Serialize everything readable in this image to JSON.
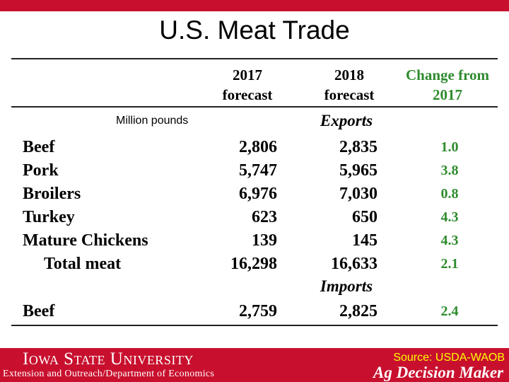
{
  "title": "U.S. Meat Trade",
  "table": {
    "headers": {
      "forecast_2017": [
        "2017",
        "forecast"
      ],
      "forecast_2018": [
        "2018",
        "forecast"
      ],
      "change": [
        "Change from",
        "2017"
      ]
    },
    "units": "Million pounds",
    "exports_label": "Exports",
    "imports_label": "Imports",
    "export_rows": [
      {
        "label": "Beef",
        "v2017": "2,806",
        "v2018": "2,835",
        "change": "1.0"
      },
      {
        "label": "Pork",
        "v2017": "5,747",
        "v2018": "5,965",
        "change": "3.8"
      },
      {
        "label": "Broilers",
        "v2017": "6,976",
        "v2018": "7,030",
        "change": "0.8"
      },
      {
        "label": "Turkey",
        "v2017": "623",
        "v2018": "650",
        "change": "4.3"
      },
      {
        "label": "Mature Chickens",
        "v2017": "139",
        "v2018": "145",
        "change": "4.3"
      },
      {
        "label": "Total meat",
        "v2017": "16,298",
        "v2018": "16,633",
        "change": "2.1"
      }
    ],
    "import_rows": [
      {
        "label": "Beef",
        "v2017": "2,759",
        "v2018": "2,825",
        "change": "2.4"
      }
    ]
  },
  "footer": {
    "university": "Iowa State University",
    "department": "Extension and Outreach/Department of Economics",
    "source": "Source: USDA-WAOB",
    "brand": "Ag Decision Maker"
  },
  "colors": {
    "brand_red": "#c8102e",
    "change_green": "#2e8b2e",
    "source_yellow": "#ffff00"
  }
}
